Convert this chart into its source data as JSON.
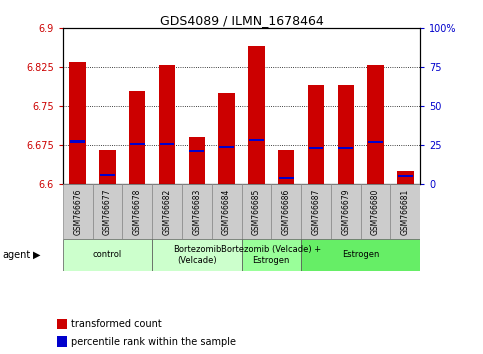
{
  "title": "GDS4089 / ILMN_1678464",
  "samples": [
    "GSM766676",
    "GSM766677",
    "GSM766678",
    "GSM766682",
    "GSM766683",
    "GSM766684",
    "GSM766685",
    "GSM766686",
    "GSM766687",
    "GSM766679",
    "GSM766680",
    "GSM766681"
  ],
  "red_values": [
    6.835,
    6.665,
    6.78,
    6.83,
    6.69,
    6.775,
    6.865,
    6.665,
    6.79,
    6.79,
    6.83,
    6.625
  ],
  "blue_values": [
    6.682,
    6.617,
    6.678,
    6.678,
    6.663,
    6.672,
    6.685,
    6.612,
    6.67,
    6.67,
    6.681,
    6.615
  ],
  "ymin": 6.6,
  "ymax": 6.9,
  "yticks": [
    6.6,
    6.675,
    6.75,
    6.825,
    6.9
  ],
  "ytick_labels": [
    "6.6",
    "6.675",
    "6.75",
    "6.825",
    "6.9"
  ],
  "y2ticks": [
    0,
    25,
    50,
    75,
    100
  ],
  "y2tick_labels": [
    "0",
    "25",
    "50",
    "75",
    "100%"
  ],
  "agent_groups": [
    {
      "label": "control",
      "start": 0,
      "end": 3,
      "color": "#ccffcc"
    },
    {
      "label": "Bortezomib\n(Velcade)",
      "start": 3,
      "end": 6,
      "color": "#ccffcc"
    },
    {
      "label": "Bortezomib (Velcade) +\nEstrogen",
      "start": 6,
      "end": 8,
      "color": "#99ff99"
    },
    {
      "label": "Estrogen",
      "start": 8,
      "end": 12,
      "color": "#66ee66"
    }
  ],
  "bar_color": "#cc0000",
  "blue_color": "#0000cc",
  "bar_width": 0.55,
  "legend_red": "transformed count",
  "legend_blue": "percentile rank within the sample",
  "grid_color": "black",
  "xlabel_color": "#cc0000",
  "y2label_color": "#0000cc"
}
